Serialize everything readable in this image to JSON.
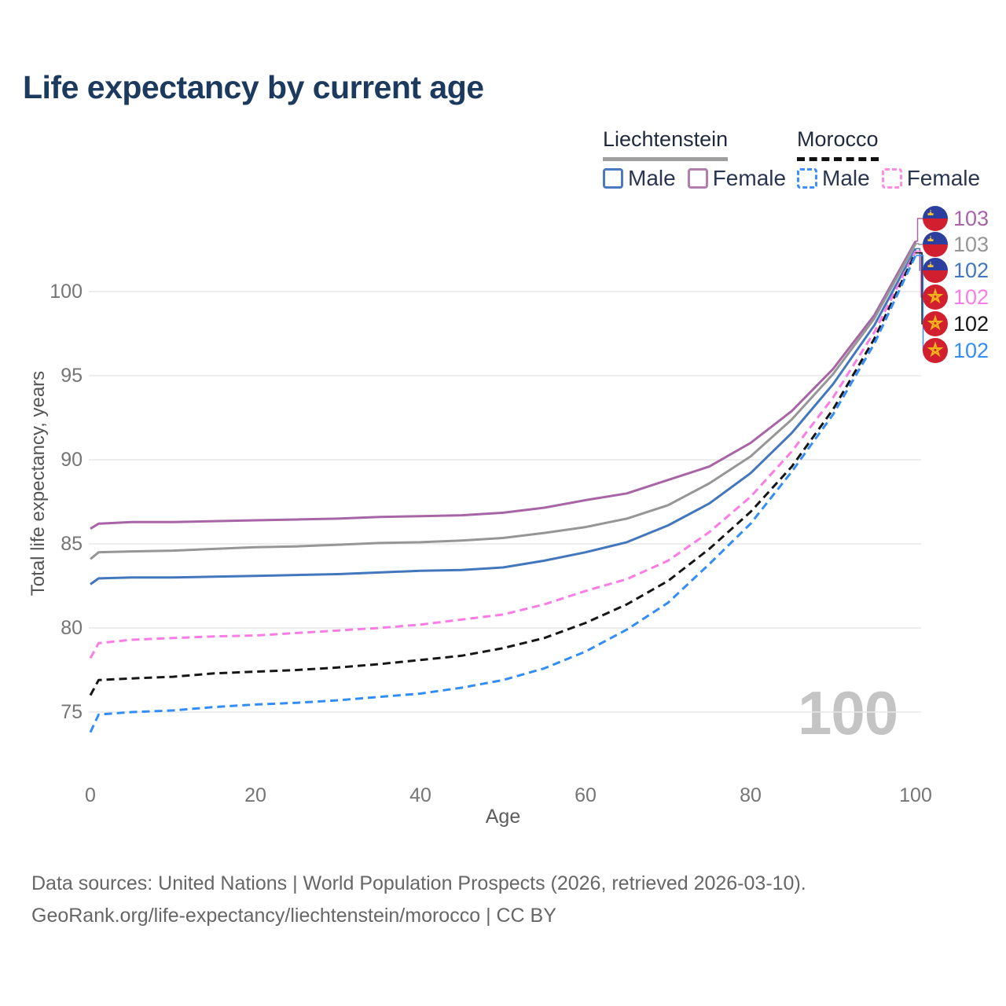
{
  "title": "Life expectancy by current age",
  "watermark": "100",
  "legend": {
    "groups": [
      {
        "country": "Liechtenstein",
        "line_style": "solid",
        "underline_color": "#9e9e9e",
        "items": [
          {
            "label": "Male",
            "color": "#4a7bc0",
            "dashed": false
          },
          {
            "label": "Female",
            "color": "#b07fad",
            "dashed": false
          }
        ]
      },
      {
        "country": "Morocco",
        "line_style": "dashed",
        "underline_color": "#111111",
        "items": [
          {
            "label": "Male",
            "color": "#3f8efc",
            "dashed": true
          },
          {
            "label": "Female",
            "color": "#ff8ce0",
            "dashed": true
          }
        ]
      }
    ]
  },
  "chart_data": {
    "type": "line",
    "title": "Life expectancy by current age",
    "xlabel": "Age",
    "ylabel": "Total life expectancy, years",
    "x_ticks": [
      0,
      20,
      40,
      60,
      80,
      100
    ],
    "y_ticks": [
      75,
      80,
      85,
      90,
      95,
      100
    ],
    "xlim": [
      0,
      100
    ],
    "ylim": [
      73,
      104
    ],
    "grid": "horizontal",
    "legend_position": "top-right",
    "ages": [
      0,
      1,
      5,
      10,
      15,
      20,
      25,
      30,
      35,
      40,
      45,
      50,
      55,
      60,
      65,
      70,
      75,
      80,
      85,
      90,
      95,
      100
    ],
    "series": [
      {
        "name": "Liechtenstein Female",
        "country": "Liechtenstein",
        "sex": "Female",
        "flag": "liechtenstein",
        "color": "#a865a6",
        "dashed": false,
        "end_label": "103",
        "values": [
          85.9,
          86.2,
          86.3,
          86.3,
          86.35,
          86.4,
          86.45,
          86.5,
          86.6,
          86.65,
          86.7,
          86.85,
          87.15,
          87.6,
          88.0,
          88.8,
          89.6,
          91.0,
          92.9,
          95.4,
          98.6,
          103.0
        ]
      },
      {
        "name": "Liechtenstein Both sexes",
        "country": "Liechtenstein",
        "sex": "Both",
        "flag": "liechtenstein",
        "color": "#969696",
        "dashed": false,
        "end_label": "103",
        "values": [
          84.1,
          84.5,
          84.55,
          84.6,
          84.7,
          84.8,
          84.85,
          84.95,
          85.05,
          85.1,
          85.2,
          85.35,
          85.65,
          86.0,
          86.5,
          87.3,
          88.6,
          90.2,
          92.4,
          95.1,
          98.4,
          102.85
        ]
      },
      {
        "name": "Liechtenstein Male",
        "country": "Liechtenstein",
        "sex": "Male",
        "flag": "liechtenstein",
        "color": "#4377bd",
        "dashed": false,
        "end_label": "102",
        "values": [
          82.6,
          82.95,
          83.0,
          83.0,
          83.05,
          83.1,
          83.15,
          83.2,
          83.3,
          83.4,
          83.45,
          83.6,
          84.0,
          84.5,
          85.1,
          86.1,
          87.4,
          89.2,
          91.6,
          94.5,
          98.0,
          102.55
        ]
      },
      {
        "name": "Morocco Female",
        "country": "Morocco",
        "sex": "Female",
        "flag": "morocco",
        "color": "#fb7ce4",
        "dashed": true,
        "end_label": "102",
        "values": [
          78.2,
          79.1,
          79.3,
          79.4,
          79.5,
          79.55,
          79.7,
          79.85,
          80.0,
          80.2,
          80.5,
          80.8,
          81.4,
          82.2,
          82.9,
          84.0,
          85.7,
          87.8,
          90.5,
          93.7,
          97.6,
          102.4
        ]
      },
      {
        "name": "Morocco Both sexes",
        "country": "Morocco",
        "sex": "Both",
        "flag": "morocco",
        "color": "#161616",
        "dashed": true,
        "end_label": "102",
        "values": [
          76.0,
          76.9,
          77.0,
          77.1,
          77.3,
          77.4,
          77.5,
          77.65,
          77.85,
          78.1,
          78.35,
          78.8,
          79.4,
          80.3,
          81.4,
          82.8,
          84.7,
          86.9,
          89.6,
          93.0,
          97.2,
          102.3
        ]
      },
      {
        "name": "Morocco Male",
        "country": "Morocco",
        "sex": "Male",
        "flag": "morocco",
        "color": "#338df7",
        "dashed": true,
        "end_label": "102",
        "values": [
          73.8,
          74.85,
          75.0,
          75.1,
          75.3,
          75.45,
          75.55,
          75.7,
          75.9,
          76.1,
          76.45,
          76.9,
          77.6,
          78.6,
          79.9,
          81.5,
          83.8,
          86.2,
          89.3,
          92.7,
          96.9,
          102.15
        ]
      }
    ]
  },
  "flags": {
    "liechtenstein": {
      "top_color": "#2d3f9e",
      "bottom_color": "#d21f2f",
      "crown_color": "#f2c33d"
    },
    "morocco": {
      "bg_color": "#d21f2f",
      "star_color": "#f0b31a"
    }
  },
  "footer": {
    "line1": "Data sources: United Nations | World Population Prospects (2026, retrieved 2026-03-10).",
    "line2": "GeoRank.org/life-expectancy/liechtenstein/morocco | CC BY"
  }
}
